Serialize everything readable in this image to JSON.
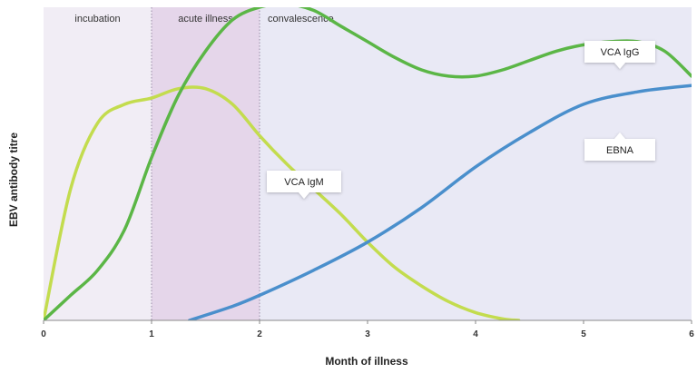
{
  "chart_data": {
    "type": "line",
    "xlabel": "Month of illness",
    "ylabel": "EBV antibody titre",
    "xlim": [
      0,
      6
    ],
    "ylim": [
      0,
      10
    ],
    "x_ticks": [
      "0",
      "1",
      "2",
      "3",
      "4",
      "5",
      "6"
    ],
    "grid": false,
    "phases": [
      {
        "label": "incubation",
        "start": 0,
        "end": 1,
        "color": "#f1edf5"
      },
      {
        "label": "acute illness",
        "start": 1,
        "end": 2,
        "color": "#e5d6ea"
      },
      {
        "label": "convalescence",
        "start": 2,
        "end": 6,
        "color": "#e9e9f5"
      }
    ],
    "series": [
      {
        "name": "VCA IgM",
        "color": "#c3dc4e",
        "x": [
          0,
          0.25,
          0.5,
          0.75,
          1,
          1.25,
          1.5,
          1.75,
          2,
          2.25,
          2.5,
          2.75,
          3,
          3.25,
          3.5,
          3.75,
          4,
          4.25,
          4.4
        ],
        "y": [
          0,
          4.2,
          6.3,
          6.9,
          7.1,
          7.4,
          7.4,
          6.9,
          5.9,
          5.0,
          4.2,
          3.4,
          2.5,
          1.7,
          1.1,
          0.6,
          0.25,
          0.05,
          0
        ]
      },
      {
        "name": "VCA IgG",
        "color": "#5bb646",
        "x": [
          0,
          0.25,
          0.5,
          0.75,
          1,
          1.25,
          1.5,
          1.75,
          2,
          2.25,
          2.5,
          2.75,
          3,
          3.25,
          3.5,
          3.75,
          4,
          4.25,
          4.5,
          4.75,
          5,
          5.25,
          5.5,
          5.75,
          6
        ],
        "y": [
          0,
          0.8,
          1.6,
          2.9,
          5.2,
          7.2,
          8.6,
          9.6,
          10.0,
          10.1,
          9.9,
          9.4,
          8.9,
          8.4,
          8.0,
          7.8,
          7.8,
          8.0,
          8.3,
          8.6,
          8.8,
          8.9,
          8.9,
          8.6,
          7.8
        ]
      },
      {
        "name": "EBNA",
        "color": "#4a8fcc",
        "x": [
          1.35,
          1.75,
          2,
          2.5,
          3,
          3.5,
          4,
          4.5,
          5,
          5.5,
          6
        ],
        "y": [
          0,
          0.45,
          0.8,
          1.6,
          2.5,
          3.6,
          4.9,
          6.0,
          6.9,
          7.3,
          7.5
        ]
      }
    ],
    "callouts": [
      {
        "series": "VCA IgM",
        "text": "VCA IgM"
      },
      {
        "series": "VCA IgG",
        "text": "VCA IgG"
      },
      {
        "series": "EBNA",
        "text": "EBNA"
      }
    ]
  }
}
